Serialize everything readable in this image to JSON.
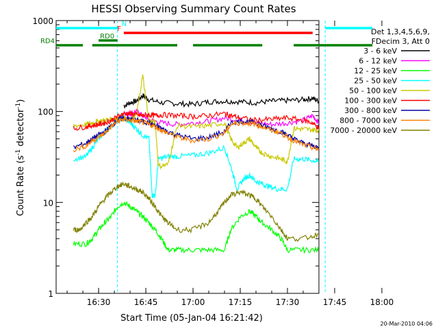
{
  "chart_data": {
    "type": "line",
    "title": "HESSI Observing Summary Count Rates",
    "xlabel": "Start Time (05-Jan-04 16:21:42)",
    "ylabel_parts": [
      "Count Rate (s",
      "-1",
      " detector",
      "-1",
      ")"
    ],
    "y_scale": "log",
    "xlim_minutes": [
      16.5,
      100
    ],
    "ylim": [
      1,
      1000
    ],
    "x_ticks": [
      {
        "minute": 30,
        "label": "16:30"
      },
      {
        "minute": 45,
        "label": "16:45"
      },
      {
        "minute": 60,
        "label": "17:00"
      },
      {
        "minute": 75,
        "label": "17:15"
      },
      {
        "minute": 90,
        "label": "17:30"
      },
      {
        "minute": 105,
        "label": "17:45"
      },
      {
        "minute": 120,
        "label": "18:00"
      }
    ],
    "y_ticks": [
      {
        "value": 1,
        "label": "1"
      },
      {
        "value": 10,
        "label": "10"
      },
      {
        "value": 100,
        "label": "100"
      },
      {
        "value": 1000,
        "label": "1000"
      }
    ],
    "legend_header": [
      "Det 1,3,4,5,6,9,",
      "FDecim 3, Att 0"
    ],
    "legend_placement": "right",
    "footer_timestamp": "20-Mar-2010 04:06",
    "series": [
      {
        "name": "3 - 6 keV",
        "color": "#000000",
        "points": [
          [
            38,
            115
          ],
          [
            40,
            125
          ],
          [
            42,
            130
          ],
          [
            44,
            150
          ],
          [
            46,
            135
          ],
          [
            50,
            125
          ],
          [
            55,
            122
          ],
          [
            60,
            120
          ],
          [
            65,
            128
          ],
          [
            70,
            130
          ],
          [
            75,
            128
          ],
          [
            80,
            125
          ],
          [
            85,
            130
          ],
          [
            90,
            132
          ],
          [
            95,
            135
          ],
          [
            98,
            140
          ],
          [
            100,
            130
          ]
        ]
      },
      {
        "name": "6 - 12 keV",
        "color": "#ff00ff",
        "points": [
          [
            37,
            90
          ],
          [
            40,
            95
          ],
          [
            42,
            100
          ],
          [
            44,
            90
          ],
          [
            46,
            82
          ],
          [
            50,
            75
          ],
          [
            55,
            72
          ],
          [
            60,
            75
          ],
          [
            65,
            78
          ],
          [
            70,
            85
          ],
          [
            75,
            80
          ],
          [
            80,
            75
          ],
          [
            85,
            72
          ],
          [
            90,
            75
          ],
          [
            95,
            80
          ],
          [
            98,
            90
          ],
          [
            100,
            75
          ]
        ]
      },
      {
        "name": "12 - 25 keV",
        "color": "#00ff00",
        "points": [
          [
            22,
            3.5
          ],
          [
            26,
            3.5
          ],
          [
            28,
            4
          ],
          [
            30,
            5
          ],
          [
            32,
            6
          ],
          [
            34,
            7
          ],
          [
            36,
            9
          ],
          [
            38,
            10
          ],
          [
            40,
            9
          ],
          [
            42,
            8
          ],
          [
            44,
            7
          ],
          [
            46,
            6
          ],
          [
            48,
            5
          ],
          [
            50,
            4
          ],
          [
            52,
            3
          ],
          [
            55,
            3
          ],
          [
            60,
            3
          ],
          [
            65,
            3
          ],
          [
            70,
            3
          ],
          [
            72,
            5
          ],
          [
            75,
            7
          ],
          [
            78,
            8
          ],
          [
            80,
            7
          ],
          [
            82,
            6
          ],
          [
            85,
            5
          ],
          [
            88,
            4
          ],
          [
            90,
            3
          ],
          [
            95,
            3
          ],
          [
            100,
            3
          ]
        ]
      },
      {
        "name": "25 - 50 keV",
        "color": "#00ffff",
        "points": [
          [
            22,
            30
          ],
          [
            26,
            32
          ],
          [
            28,
            40
          ],
          [
            30,
            50
          ],
          [
            32,
            60
          ],
          [
            34,
            70
          ],
          [
            36,
            80
          ],
          [
            38,
            85
          ],
          [
            40,
            75
          ],
          [
            42,
            65
          ],
          [
            44,
            55
          ],
          [
            46,
            50
          ],
          [
            47,
            12
          ],
          [
            48,
            12
          ],
          [
            49,
            30
          ],
          [
            52,
            32
          ],
          [
            55,
            32
          ],
          [
            60,
            33
          ],
          [
            65,
            35
          ],
          [
            70,
            40
          ],
          [
            72,
            25
          ],
          [
            74,
            14
          ],
          [
            76,
            18
          ],
          [
            78,
            20
          ],
          [
            80,
            17
          ],
          [
            82,
            16
          ],
          [
            84,
            15
          ],
          [
            87,
            14
          ],
          [
            90,
            14
          ],
          [
            92,
            30
          ],
          [
            95,
            30
          ],
          [
            98,
            29
          ],
          [
            100,
            28
          ]
        ]
      },
      {
        "name": "50 - 100 keV",
        "color": "#c8c800",
        "points": [
          [
            22,
            70
          ],
          [
            26,
            72
          ],
          [
            28,
            75
          ],
          [
            30,
            78
          ],
          [
            32,
            80
          ],
          [
            34,
            82
          ],
          [
            36,
            85
          ],
          [
            38,
            85
          ],
          [
            40,
            80
          ],
          [
            42,
            90
          ],
          [
            44,
            250
          ],
          [
            46,
            80
          ],
          [
            48,
            75
          ],
          [
            49,
            25
          ],
          [
            52,
            26
          ],
          [
            55,
            70
          ],
          [
            60,
            68
          ],
          [
            65,
            70
          ],
          [
            70,
            75
          ],
          [
            72,
            50
          ],
          [
            74,
            40
          ],
          [
            76,
            45
          ],
          [
            78,
            50
          ],
          [
            80,
            40
          ],
          [
            82,
            35
          ],
          [
            85,
            32
          ],
          [
            88,
            30
          ],
          [
            90,
            28
          ],
          [
            92,
            65
          ],
          [
            95,
            64
          ],
          [
            98,
            63
          ],
          [
            100,
            62
          ]
        ]
      },
      {
        "name": "100 - 300 keV",
        "color": "#ff0000",
        "points": [
          [
            22,
            65
          ],
          [
            26,
            68
          ],
          [
            28,
            70
          ],
          [
            30,
            72
          ],
          [
            32,
            75
          ],
          [
            34,
            80
          ],
          [
            36,
            88
          ],
          [
            38,
            95
          ],
          [
            40,
            95
          ],
          [
            42,
            92
          ],
          [
            44,
            90
          ],
          [
            46,
            92
          ],
          [
            48,
            90
          ],
          [
            50,
            92
          ],
          [
            55,
            90
          ],
          [
            60,
            88
          ],
          [
            65,
            90
          ],
          [
            70,
            95
          ],
          [
            72,
            90
          ],
          [
            75,
            85
          ],
          [
            80,
            80
          ],
          [
            85,
            82
          ],
          [
            90,
            85
          ],
          [
            95,
            80
          ],
          [
            98,
            75
          ],
          [
            100,
            65
          ]
        ]
      },
      {
        "name": "300 - 800 keV",
        "color": "#0000aa",
        "points": [
          [
            22,
            40
          ],
          [
            26,
            45
          ],
          [
            28,
            50
          ],
          [
            30,
            55
          ],
          [
            32,
            60
          ],
          [
            34,
            70
          ],
          [
            36,
            80
          ],
          [
            38,
            85
          ],
          [
            40,
            82
          ],
          [
            42,
            80
          ],
          [
            44,
            78
          ],
          [
            46,
            75
          ],
          [
            48,
            70
          ],
          [
            50,
            65
          ],
          [
            52,
            60
          ],
          [
            55,
            55
          ],
          [
            60,
            50
          ],
          [
            65,
            52
          ],
          [
            70,
            60
          ],
          [
            72,
            75
          ],
          [
            75,
            78
          ],
          [
            78,
            76
          ],
          [
            80,
            75
          ],
          [
            82,
            70
          ],
          [
            85,
            65
          ],
          [
            88,
            60
          ],
          [
            90,
            55
          ],
          [
            92,
            50
          ],
          [
            95,
            45
          ],
          [
            98,
            42
          ],
          [
            100,
            40
          ]
        ]
      },
      {
        "name": "800 - 7000 keV",
        "color": "#ff8000",
        "points": [
          [
            22,
            38
          ],
          [
            26,
            42
          ],
          [
            28,
            48
          ],
          [
            30,
            52
          ],
          [
            32,
            58
          ],
          [
            34,
            68
          ],
          [
            36,
            78
          ],
          [
            38,
            82
          ],
          [
            40,
            80
          ],
          [
            42,
            78
          ],
          [
            44,
            76
          ],
          [
            46,
            72
          ],
          [
            48,
            68
          ],
          [
            50,
            62
          ],
          [
            52,
            58
          ],
          [
            55,
            52
          ],
          [
            60,
            48
          ],
          [
            65,
            50
          ],
          [
            70,
            58
          ],
          [
            72,
            72
          ],
          [
            75,
            75
          ],
          [
            78,
            74
          ],
          [
            80,
            72
          ],
          [
            82,
            68
          ],
          [
            85,
            62
          ],
          [
            88,
            58
          ],
          [
            90,
            52
          ],
          [
            92,
            48
          ],
          [
            95,
            43
          ],
          [
            98,
            40
          ],
          [
            100,
            38
          ]
        ]
      },
      {
        "name": "7000 - 20000 keV",
        "color": "#808000",
        "points": [
          [
            22,
            5
          ],
          [
            24,
            5
          ],
          [
            26,
            6
          ],
          [
            28,
            7
          ],
          [
            30,
            9
          ],
          [
            32,
            11
          ],
          [
            34,
            13
          ],
          [
            36,
            15
          ],
          [
            38,
            16
          ],
          [
            40,
            15
          ],
          [
            42,
            14
          ],
          [
            44,
            13
          ],
          [
            46,
            11
          ],
          [
            48,
            9
          ],
          [
            50,
            7
          ],
          [
            52,
            6
          ],
          [
            55,
            5
          ],
          [
            60,
            5
          ],
          [
            65,
            6
          ],
          [
            68,
            8
          ],
          [
            70,
            10
          ],
          [
            72,
            12
          ],
          [
            75,
            13
          ],
          [
            78,
            12
          ],
          [
            80,
            11
          ],
          [
            82,
            9
          ],
          [
            85,
            7
          ],
          [
            88,
            5
          ],
          [
            90,
            4
          ],
          [
            95,
            4
          ],
          [
            100,
            4.5
          ]
        ]
      }
    ],
    "flags": [
      {
        "label": "N",
        "color": "#00ffff",
        "segments": [
          [
            16.5,
            36
          ],
          [
            102,
            117
          ]
        ]
      },
      {
        "label": "F",
        "color": "#ff0000",
        "segments": [
          [
            38,
            98
          ]
        ]
      },
      {
        "label": "RD0",
        "color": "#008000",
        "segments": [
          [
            30,
            36
          ]
        ]
      },
      {
        "label": "RD4",
        "color": "#008000",
        "segments": [
          [
            16.5,
            25
          ],
          [
            28,
            55
          ],
          [
            60,
            82
          ],
          [
            92,
            117
          ]
        ]
      }
    ],
    "markers": [
      {
        "minute": 36,
        "color": "#00ffff",
        "style": "dashed"
      },
      {
        "minute": 102,
        "color": "#00ffff",
        "style": "dashed"
      }
    ]
  }
}
